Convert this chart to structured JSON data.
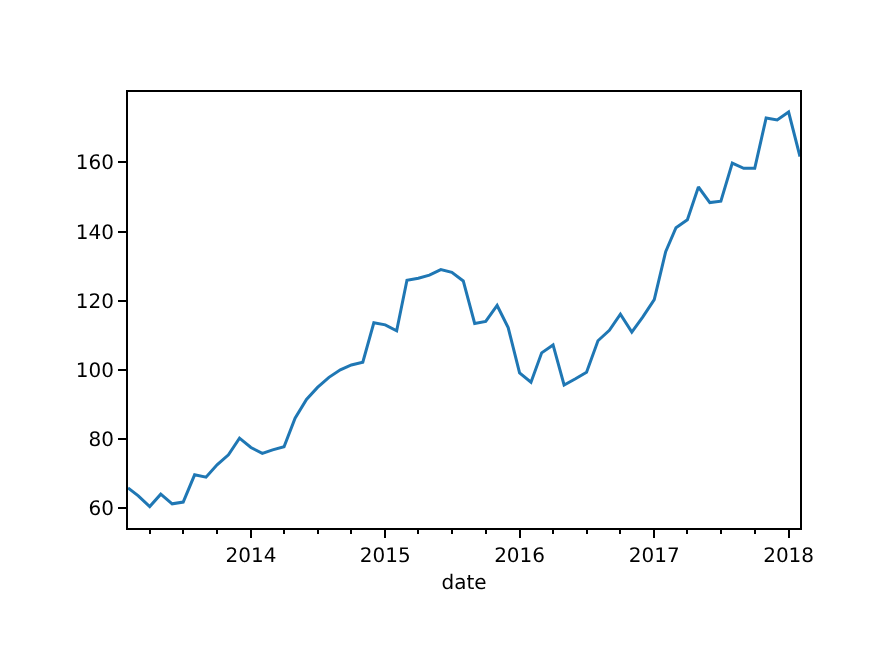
{
  "chart_data": {
    "type": "line",
    "xlabel": "date",
    "x": [
      "2013-02",
      "2013-03",
      "2013-04",
      "2013-05",
      "2013-06",
      "2013-07",
      "2013-08",
      "2013-09",
      "2013-10",
      "2013-11",
      "2013-12",
      "2014-01",
      "2014-02",
      "2014-03",
      "2014-04",
      "2014-05",
      "2014-06",
      "2014-07",
      "2014-08",
      "2014-09",
      "2014-10",
      "2014-11",
      "2014-12",
      "2015-01",
      "2015-02",
      "2015-03",
      "2015-04",
      "2015-05",
      "2015-06",
      "2015-07",
      "2015-08",
      "2015-09",
      "2015-10",
      "2015-11",
      "2015-12",
      "2016-01",
      "2016-02",
      "2016-03",
      "2016-04",
      "2016-05",
      "2016-06",
      "2016-07",
      "2016-08",
      "2016-09",
      "2016-10",
      "2016-11",
      "2016-12",
      "2017-01",
      "2017-02",
      "2017-03",
      "2017-04",
      "2017-05",
      "2017-06",
      "2017-07",
      "2017-08",
      "2017-09",
      "2017-10",
      "2017-11",
      "2017-12",
      "2018-01",
      "2018-02"
    ],
    "series": [
      {
        "color": "#1f77b4",
        "values": [
          65.8,
          63.5,
          60.4,
          64,
          61.2,
          61.7,
          69.6,
          68.9,
          72.5,
          75.4,
          80.2,
          77.5,
          75.8,
          76.8,
          77.7,
          86,
          91.4,
          94.9,
          97.8,
          100,
          101.4,
          102.2,
          113.6,
          113,
          111.3,
          125.9,
          126.5,
          127.4,
          129,
          128.2,
          125.7,
          113.4,
          114,
          118.6,
          112.2,
          99.1,
          96.4,
          104.9,
          107.2,
          95.6,
          97.4,
          99.3,
          108.4,
          111.4,
          116.1,
          110.9,
          115.3,
          120.3,
          134.2,
          141.1,
          143.4,
          152.9,
          148.4,
          148.8,
          159.8,
          158.3,
          158.3,
          172.9,
          172.3,
          174.6,
          161.7
        ]
      }
    ],
    "xlim": [
      "2013-02",
      "2018-02"
    ],
    "xticks": [
      {
        "value": "2014-01",
        "label": "2014"
      },
      {
        "value": "2015-01",
        "label": "2015"
      },
      {
        "value": "2016-01",
        "label": "2016"
      },
      {
        "value": "2017-01",
        "label": "2017"
      },
      {
        "value": "2018-01",
        "label": "2018"
      }
    ],
    "ylim": [
      54.2,
      180.4
    ],
    "yticks": [
      60,
      80,
      100,
      120,
      140,
      160
    ],
    "marker": "none",
    "line_style": "solid"
  }
}
